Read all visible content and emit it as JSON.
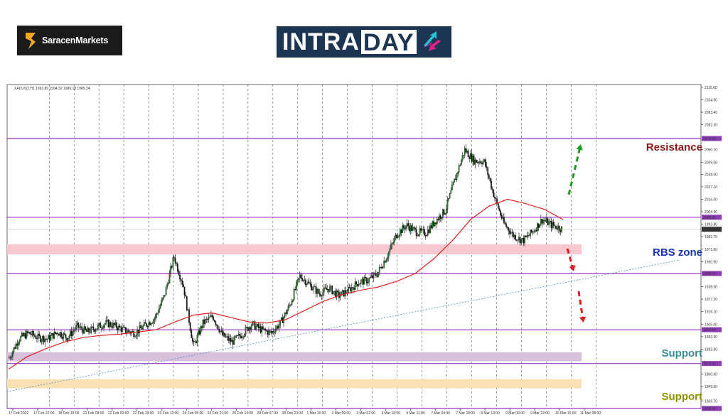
{
  "brand": {
    "name": "SaracenMarkets",
    "logo_color": "#f5a623"
  },
  "banner": {
    "part1": "INTRA",
    "part2": "DAY",
    "arrow_colors": [
      "#25c1d8",
      "#e0218a"
    ]
  },
  "chart_data": {
    "type": "candlestick",
    "symbol_header": "XAUUSD,H1  1992.89 1994.32 1989.18 1989.34",
    "ylim": [
      1830,
      2118
    ],
    "y_ticks": [
      2115.6,
      2104.5,
      2093.4,
      2082.3,
      2060.1,
      2049.0,
      2038.0,
      2027.1,
      2016.0,
      2004.9,
      1993.8,
      1982.7,
      1971.6,
      1960.5,
      1938.3,
      1927.2,
      1916.1,
      1905.0,
      1893.9,
      1882.8,
      1860.6,
      1849.5,
      1836.7
    ],
    "x_labels": [
      "17 Feb 2022",
      "17 Feb 22:00",
      "18 Feb 15:00",
      "21 Feb 08:00",
      "22 Feb 03:00",
      "22 Feb 19:00",
      "23 Feb 12:00",
      "24 Feb 05:00",
      "24 Feb 21:00",
      "25 Feb 14:00",
      "28 Feb 07:00",
      "28 Feb 23:00",
      "1 Mar 16:00",
      "2 Mar 09:00",
      "3 Mar 02:00",
      "3 Mar 18:00",
      "4 Mar 11:00",
      "7 Mar 04:00",
      "7 Mar 20:00",
      "8 Mar 13:00",
      "9 Mar 06:00",
      "9 Mar 22:00",
      "10 Mar 15:00",
      "11 Mar 08:00"
    ],
    "horizontal_levels": [
      {
        "label": "2070.00",
        "value": 2070,
        "color": "#9b30c8"
      },
      {
        "label": "2000.00",
        "value": 2000,
        "color": "#9b30c8"
      },
      {
        "label": "1950.00",
        "value": 1950,
        "color": "#9b30c8"
      },
      {
        "label": "1900.00",
        "value": 1900,
        "color": "#9b30c8"
      },
      {
        "label": "1870.00",
        "value": 1870,
        "color": "#9b30c8"
      },
      {
        "label": "1830.00",
        "value": 1830,
        "color": "#9b30c8"
      }
    ],
    "current_price": {
      "label": "1989.34",
      "value": 1989.34
    },
    "zones": [
      {
        "name": "rbs",
        "from": 1967,
        "to": 1976,
        "color": "#f8c8d0"
      },
      {
        "name": "support-1",
        "from": 1872,
        "to": 1880,
        "color": "#d8bfdc"
      },
      {
        "name": "support-2",
        "from": 1848,
        "to": 1856,
        "color": "#fbe0b4"
      }
    ],
    "trendline": {
      "from": [
        0,
        1845
      ],
      "to": [
        1,
        1962
      ],
      "color": "#4a8fc0"
    },
    "annotations": [
      {
        "text": "Resistance",
        "color": "#8b1a1a"
      },
      {
        "text": "RBS zone",
        "color": "#1a33b5"
      },
      {
        "text": "Support",
        "color": "#3a8c95"
      },
      {
        "text": "Support",
        "color": "#8e9000"
      }
    ],
    "price_path": [
      1875,
      1892,
      1897,
      1893,
      1892,
      1898,
      1893,
      1903,
      1898,
      1902,
      1906,
      1903,
      1899,
      1897,
      1904,
      1910,
      1930,
      1965,
      1938,
      1885,
      1906,
      1912,
      1895,
      1889,
      1896,
      1905,
      1900,
      1897,
      1906,
      1923,
      1948,
      1940,
      1932,
      1937,
      1930,
      1935,
      1942,
      1944,
      1950,
      1966,
      1985,
      1993,
      1987,
      1986,
      1997,
      2006,
      2034,
      2060,
      2050,
      2050,
      2020,
      1995,
      1984,
      1979,
      1987,
      1998,
      1993,
      1990
    ],
    "ma_path": [
      1865,
      1876,
      1883,
      1889,
      1893,
      1895,
      1896,
      1898,
      1900,
      1907,
      1913,
      1915,
      1911,
      1907,
      1906,
      1909,
      1917,
      1925,
      1931,
      1935,
      1938,
      1943,
      1950,
      1963,
      1979,
      1998,
      2010,
      2016,
      2012,
      2007,
      1998
    ],
    "signals": [
      {
        "direction": "up",
        "color": "#1e9a1e"
      },
      {
        "direction": "down",
        "color": "#e02020"
      },
      {
        "direction": "down",
        "color": "#e02020"
      }
    ],
    "grid": true
  }
}
